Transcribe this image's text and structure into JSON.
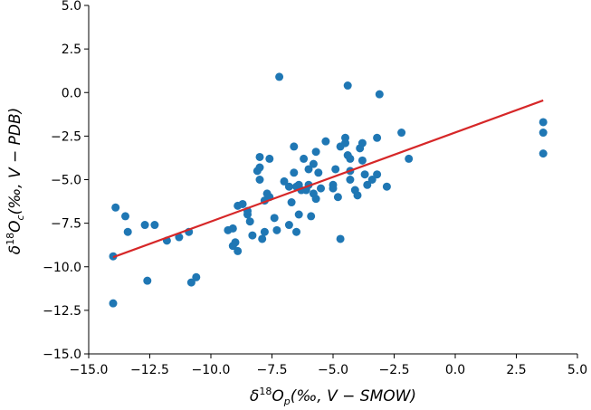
{
  "chart_data": {
    "type": "scatter",
    "title": "",
    "xlabel_parts": {
      "base": "δ",
      "sup": "18",
      "main": "O",
      "sub": "p",
      "rest": "(‰, V − SMOW)"
    },
    "ylabel_parts": {
      "base": "δ",
      "sup": "18",
      "main": "O",
      "sub": "c",
      "rest": "(‰, V − PDB)"
    },
    "xlim": [
      -15,
      5
    ],
    "ylim": [
      -15,
      5
    ],
    "xticks": [
      -15,
      -12.5,
      -10,
      -7.5,
      -5,
      -2.5,
      0,
      2.5,
      5
    ],
    "yticks": [
      -15,
      -12.5,
      -10,
      -7.5,
      -5,
      -2.5,
      0,
      2.5,
      5
    ],
    "xtick_labels": [
      "−15.0",
      "−12.5",
      "−10.0",
      "−7.5",
      "−5.0",
      "−2.5",
      "0.0",
      "2.5",
      "5.0"
    ],
    "ytick_labels": [
      "−15.0",
      "−12.5",
      "−10.0",
      "−7.5",
      "−5.0",
      "−2.5",
      "0.0",
      "2.5",
      "5.0"
    ],
    "grid": false,
    "points_color": "#1f77b4",
    "line_color": "#d62728",
    "points": [
      [
        -14.0,
        -9.4
      ],
      [
        -13.9,
        -6.6
      ],
      [
        -14.0,
        -12.1
      ],
      [
        -13.5,
        -7.1
      ],
      [
        -13.4,
        -8.0
      ],
      [
        -12.7,
        -7.6
      ],
      [
        -12.6,
        -10.8
      ],
      [
        -12.3,
        -7.6
      ],
      [
        -11.8,
        -8.5
      ],
      [
        -11.3,
        -8.3
      ],
      [
        -10.9,
        -8.0
      ],
      [
        -10.8,
        -10.9
      ],
      [
        -10.6,
        -10.6
      ],
      [
        -9.3,
        -7.9
      ],
      [
        -9.1,
        -7.8
      ],
      [
        -9.1,
        -8.8
      ],
      [
        -9.0,
        -8.6
      ],
      [
        -8.9,
        -6.5
      ],
      [
        -8.9,
        -9.1
      ],
      [
        -8.7,
        -6.4
      ],
      [
        -8.5,
        -7.0
      ],
      [
        -8.5,
        -6.8
      ],
      [
        -8.4,
        -7.4
      ],
      [
        -8.3,
        -8.2
      ],
      [
        -8.1,
        -4.5
      ],
      [
        -8.0,
        -3.7
      ],
      [
        -8.0,
        -4.3
      ],
      [
        -8.0,
        -5.0
      ],
      [
        -7.9,
        -8.4
      ],
      [
        -7.8,
        -8.0
      ],
      [
        -7.8,
        -6.2
      ],
      [
        -7.7,
        -5.8
      ],
      [
        -7.6,
        -6.0
      ],
      [
        -7.6,
        -3.8
      ],
      [
        -7.4,
        -7.2
      ],
      [
        -7.3,
        -7.9
      ],
      [
        -7.2,
        0.9
      ],
      [
        -7.0,
        -5.1
      ],
      [
        -6.8,
        -5.4
      ],
      [
        -6.8,
        -7.6
      ],
      [
        -6.7,
        -6.3
      ],
      [
        -6.6,
        -3.1
      ],
      [
        -6.6,
        -4.6
      ],
      [
        -6.5,
        -5.4
      ],
      [
        -6.5,
        -8.0
      ],
      [
        -6.4,
        -7.0
      ],
      [
        -6.4,
        -5.3
      ],
      [
        -6.3,
        -5.6
      ],
      [
        -6.2,
        -3.8
      ],
      [
        -6.1,
        -5.6
      ],
      [
        -6.0,
        -4.4
      ],
      [
        -6.0,
        -5.3
      ],
      [
        -5.9,
        -7.1
      ],
      [
        -5.8,
        -4.1
      ],
      [
        -5.8,
        -5.8
      ],
      [
        -5.7,
        -6.1
      ],
      [
        -5.7,
        -3.4
      ],
      [
        -5.6,
        -4.6
      ],
      [
        -5.5,
        -5.5
      ],
      [
        -5.3,
        -2.8
      ],
      [
        -5.0,
        -5.3
      ],
      [
        -5.0,
        -5.5
      ],
      [
        -4.9,
        -4.4
      ],
      [
        -4.8,
        -6.0
      ],
      [
        -4.7,
        -3.1
      ],
      [
        -4.7,
        -8.4
      ],
      [
        -4.5,
        -2.9
      ],
      [
        -4.5,
        -2.6
      ],
      [
        -4.4,
        0.4
      ],
      [
        -4.4,
        -3.6
      ],
      [
        -4.3,
        -3.8
      ],
      [
        -4.3,
        -4.5
      ],
      [
        -4.3,
        -5.0
      ],
      [
        -4.1,
        -5.6
      ],
      [
        -4.0,
        -5.9
      ],
      [
        -3.9,
        -3.2
      ],
      [
        -3.8,
        -2.9
      ],
      [
        -3.8,
        -3.9
      ],
      [
        -3.7,
        -4.7
      ],
      [
        -3.6,
        -5.3
      ],
      [
        -3.4,
        -5.0
      ],
      [
        -3.2,
        -4.7
      ],
      [
        -3.2,
        -2.6
      ],
      [
        -3.1,
        -0.1
      ],
      [
        -2.8,
        -5.4
      ],
      [
        -2.2,
        -2.3
      ],
      [
        -1.9,
        -3.8
      ],
      [
        3.6,
        -1.7
      ],
      [
        3.6,
        -2.3
      ],
      [
        3.6,
        -3.5
      ]
    ],
    "fit_line": {
      "x": [
        -14.0,
        3.6
      ],
      "y": [
        -9.45,
        -0.45
      ]
    }
  }
}
